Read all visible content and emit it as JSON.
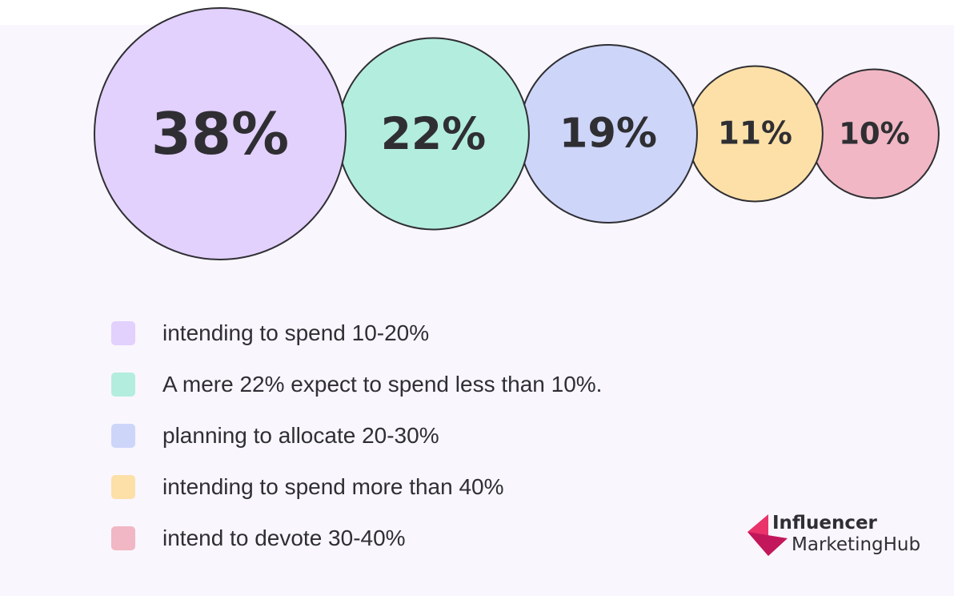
{
  "chart_data": {
    "type": "bubble",
    "title": "",
    "values": [
      38,
      22,
      19,
      11,
      10
    ],
    "labels": [
      "38%",
      "22%",
      "19%",
      "11%",
      "10%"
    ],
    "legend": [
      "intending to spend 10-20%",
      "A mere 22% expect to spend less than 10%.",
      "planning to allocate 20-30%",
      "intending to spend more than 40%",
      "intend to devote 30-40%"
    ],
    "colors": [
      "#e2d0fd",
      "#b3edde",
      "#cdd5f9",
      "#fde0a8",
      "#f1b7c4"
    ],
    "legend_placement": "bottom"
  },
  "logo": {
    "line1": "Influencer",
    "line2": "MarketingHub",
    "colors": [
      "#e9336a",
      "#c2185b"
    ]
  }
}
